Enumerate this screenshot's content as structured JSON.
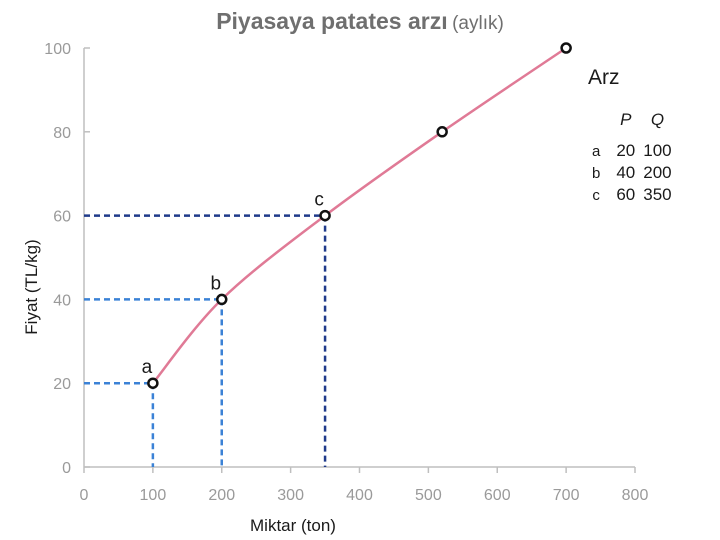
{
  "title": {
    "main": "Piyasaya patates arzı",
    "sub": "(aylık)"
  },
  "colors": {
    "curve": "#e07a96",
    "guide_dark": "#1f3a8a",
    "guide_light": "#3b82d6",
    "axis": "#bfbfbf",
    "tick_text": "#9a9a9a"
  },
  "table": {
    "headers": [
      "P",
      "Q"
    ],
    "rows": [
      {
        "label": "a",
        "p": "20",
        "q": "100"
      },
      {
        "label": "b",
        "p": "40",
        "q": "200"
      },
      {
        "label": "c",
        "p": "60",
        "q": "350"
      }
    ]
  },
  "chart_data": {
    "type": "line",
    "title": "Piyasaya patates arzı (aylık)",
    "xlabel": "Miktar (ton)",
    "ylabel": "Fiyat (TL/kg)",
    "xlim": [
      0,
      800
    ],
    "ylim": [
      0,
      100
    ],
    "x_ticks": [
      "0",
      "100",
      "200",
      "300",
      "400",
      "500",
      "600",
      "700",
      "800"
    ],
    "y_ticks": [
      "0",
      "20",
      "40",
      "60",
      "80",
      "100"
    ],
    "grid": false,
    "series": [
      {
        "name": "Arz",
        "points": [
          {
            "x": 100,
            "y": 20,
            "label": "a"
          },
          {
            "x": 200,
            "y": 40,
            "label": "b"
          },
          {
            "x": 350,
            "y": 60,
            "label": "c"
          },
          {
            "x": 520,
            "y": 80,
            "label": ""
          },
          {
            "x": 700,
            "y": 100,
            "label": ""
          }
        ]
      }
    ],
    "guides": [
      {
        "x": 100,
        "y": 20,
        "style": "light"
      },
      {
        "x": 200,
        "y": 40,
        "style": "light"
      },
      {
        "x": 350,
        "y": 60,
        "style": "dark"
      }
    ]
  }
}
